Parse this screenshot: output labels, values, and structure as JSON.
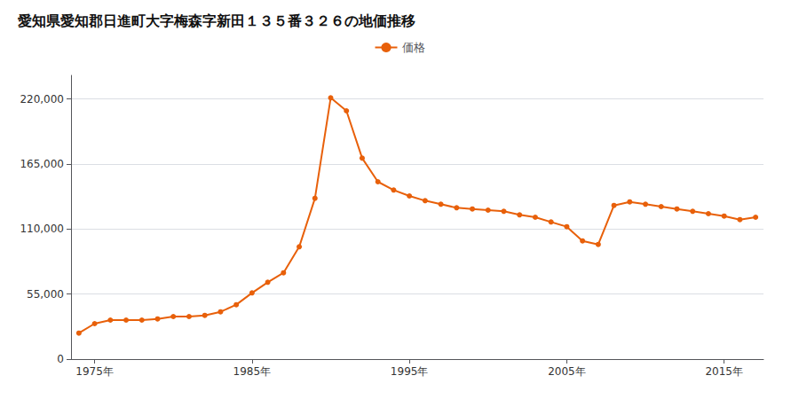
{
  "chart_data": {
    "type": "line",
    "title": "愛知県愛知郡日進町大字梅森字新田１３５番３２６の地価推移",
    "x": [
      1974,
      1975,
      1976,
      1977,
      1978,
      1979,
      1980,
      1981,
      1982,
      1983,
      1984,
      1985,
      1986,
      1987,
      1988,
      1989,
      1990,
      1991,
      1992,
      1993,
      1994,
      1995,
      1996,
      1997,
      1998,
      1999,
      2000,
      2001,
      2002,
      2003,
      2004,
      2005,
      2006,
      2007,
      2008,
      2009,
      2010,
      2011,
      2012,
      2013,
      2014,
      2015,
      2016,
      2017
    ],
    "series": [
      {
        "name": "価格",
        "color": "#e8600a",
        "marker": "circle",
        "values": [
          22000,
          30000,
          33000,
          33000,
          33000,
          34000,
          36000,
          36000,
          37000,
          40000,
          46000,
          56000,
          65000,
          73000,
          95000,
          136000,
          221000,
          210000,
          170000,
          150000,
          143000,
          138000,
          134000,
          131000,
          128000,
          127000,
          126000,
          125000,
          122000,
          120000,
          116000,
          112000,
          100000,
          97000,
          130000,
          133000,
          131000,
          129000,
          127000,
          125000,
          123000,
          121000,
          118000,
          120000
        ]
      }
    ],
    "xlim": [
      1973.5,
      2017.5
    ],
    "xticks": [
      {
        "value": 1975,
        "label": "1975年"
      },
      {
        "value": 1985,
        "label": "1985年"
      },
      {
        "value": 1995,
        "label": "1995年"
      },
      {
        "value": 2005,
        "label": "2005年"
      },
      {
        "value": 2015,
        "label": "2015年"
      }
    ],
    "ylim": [
      0,
      240000
    ],
    "yticks": [
      0,
      {
        "value": 55000,
        "label": "55,000"
      },
      {
        "value": 110000,
        "label": "110,000"
      },
      {
        "value": 165000,
        "label": "165,000"
      },
      {
        "value": 220000,
        "label": "220,000"
      }
    ],
    "grid": true,
    "legend": "top"
  }
}
